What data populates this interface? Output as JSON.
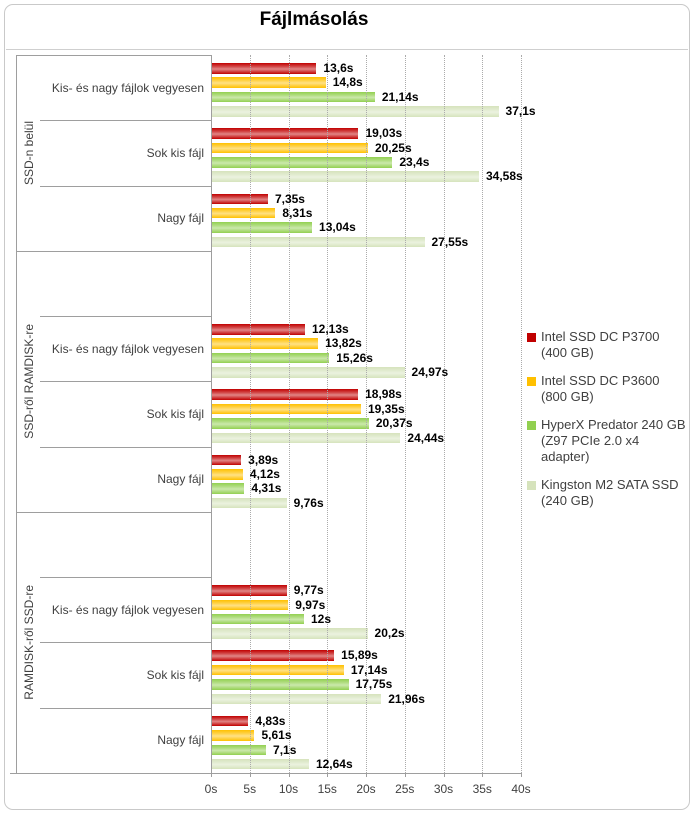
{
  "title": "Fájlmásolás",
  "chart_data": {
    "type": "bar",
    "orientation": "horizontal",
    "title": "Fájlmásolás",
    "value_unit": "s",
    "xlim": [
      0,
      40
    ],
    "x_tick_labels": [
      "0s",
      "5s",
      "10s",
      "15s",
      "20s",
      "25s",
      "30s",
      "35s",
      "40s"
    ],
    "grid": "vertical dotted gridlines every 5s",
    "legend_position": "right",
    "series": [
      {
        "name": "Intel SSD DC P3700",
        "detail": "(400 GB)",
        "color": "#C00000"
      },
      {
        "name": "Intel SSD DC P3600",
        "detail": "(800 GB)",
        "color": "#FFC000"
      },
      {
        "name": "HyperX Predator 240 GB",
        "detail": "(Z97 PCIe 2.0 x4 adapter)",
        "color": "#92D050"
      },
      {
        "name": "Kingston M2 SATA SSD",
        "detail": "(240 GB)",
        "color": "#D6E3BC"
      }
    ],
    "groups": [
      {
        "label": "SSD-n belül",
        "categories": [
          {
            "label": "Kis- és nagy fájlok vegyesen",
            "values": [
              13.6,
              14.8,
              21.14,
              37.1
            ],
            "value_labels": [
              "13,6s",
              "14,8s",
              "21,14s",
              "37,1s"
            ]
          },
          {
            "label": "Sok kis fájl",
            "values": [
              19.03,
              20.25,
              23.4,
              34.58
            ],
            "value_labels": [
              "19,03s",
              "20,25s",
              "23,4s",
              "34,58s"
            ]
          },
          {
            "label": "Nagy fájl",
            "values": [
              7.35,
              8.31,
              13.04,
              27.55
            ],
            "value_labels": [
              "7,35s",
              "8,31s",
              "13,04s",
              "27,55s"
            ]
          }
        ]
      },
      {
        "label": "SSD-ről RAMDISK-re",
        "categories": [
          {
            "label": "Kis- és nagy fájlok vegyesen",
            "values": [
              12.13,
              13.82,
              15.26,
              24.97
            ],
            "value_labels": [
              "12,13s",
              "13,82s",
              "15,26s",
              "24,97s"
            ]
          },
          {
            "label": "Sok kis fájl",
            "values": [
              18.98,
              19.35,
              20.37,
              24.44
            ],
            "value_labels": [
              "18,98s",
              "19,35s",
              "20,37s",
              "24,44s"
            ]
          },
          {
            "label": "Nagy fájl",
            "values": [
              3.89,
              4.12,
              4.31,
              9.76
            ],
            "value_labels": [
              "3,89s",
              "4,12s",
              "4,31s",
              "9,76s"
            ]
          }
        ]
      },
      {
        "label": "RAMDISK-ről SSD-re",
        "categories": [
          {
            "label": "Kis- és nagy fájlok vegyesen",
            "values": [
              9.77,
              9.97,
              12,
              20.2
            ],
            "value_labels": [
              "9,77s",
              "9,97s",
              "12s",
              "20,2s"
            ]
          },
          {
            "label": "Sok kis fájl",
            "values": [
              15.89,
              17.14,
              17.75,
              21.96
            ],
            "value_labels": [
              "15,89s",
              "17,14s",
              "17,75s",
              "21,96s"
            ]
          },
          {
            "label": "Nagy fájl",
            "values": [
              4.83,
              5.61,
              7.1,
              12.64
            ],
            "value_labels": [
              "4,83s",
              "5,61s",
              "7,1s",
              "12,64s"
            ]
          }
        ]
      }
    ]
  }
}
